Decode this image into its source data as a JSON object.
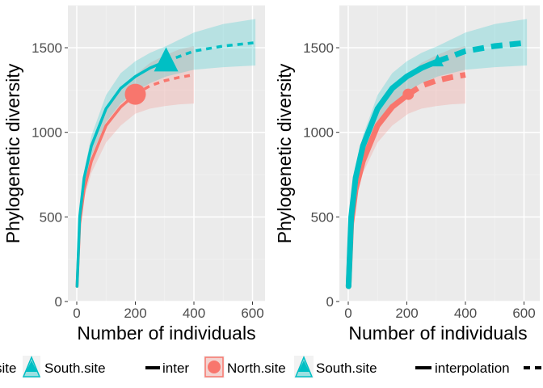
{
  "chart_data": [
    {
      "type": "line",
      "title": "",
      "xlabel": "Number of individuals",
      "ylabel": "Phylogenetic diversity",
      "xlim": [
        -25,
        630
      ],
      "ylim": [
        0,
        1750
      ],
      "x_ticks": [
        "0",
        "200",
        "400",
        "600"
      ],
      "y_ticks": [
        "0",
        "500",
        "1000",
        "1500"
      ],
      "grid": true,
      "legend_position": "bottom",
      "series": [
        {
          "name": "North.site",
          "color": "#F8766D",
          "observed": {
            "x": 200,
            "y": 1225
          },
          "interpolation": {
            "x": [
              1,
              10,
              25,
              50,
              100,
              150,
              200
            ],
            "y": [
              90,
              460,
              660,
              830,
              1040,
              1150,
              1225
            ],
            "lower": [
              85,
              440,
              610,
              760,
              940,
              1040,
              1110
            ],
            "upper": [
              95,
              480,
              710,
              900,
              1140,
              1260,
              1340
            ]
          },
          "extrapolation": {
            "x": [
              200,
              250,
              300,
              350,
              400
            ],
            "y": [
              1225,
              1275,
              1305,
              1325,
              1340
            ],
            "lower": [
              1110,
              1140,
              1155,
              1165,
              1170
            ],
            "upper": [
              1340,
              1410,
              1455,
              1490,
              1510
            ]
          }
        },
        {
          "name": "South.site",
          "color": "#00BFC4",
          "observed": {
            "x": 305,
            "y": 1420
          },
          "interpolation": {
            "x": [
              1,
              10,
              25,
              50,
              100,
              150,
              200,
              250,
              305
            ],
            "y": [
              90,
              500,
              730,
              920,
              1140,
              1260,
              1330,
              1380,
              1420
            ],
            "lower": [
              85,
              480,
              690,
              860,
              1060,
              1170,
              1240,
              1290,
              1330
            ],
            "upper": [
              95,
              520,
              770,
              980,
              1220,
              1350,
              1420,
              1470,
              1510
            ]
          },
          "extrapolation": {
            "x": [
              305,
              400,
              500,
              610
            ],
            "y": [
              1420,
              1480,
              1510,
              1530
            ],
            "lower": [
              1330,
              1370,
              1385,
              1395
            ],
            "upper": [
              1510,
              1590,
              1640,
              1670
            ]
          }
        }
      ]
    },
    {
      "type": "line",
      "title": "",
      "xlabel": "Number of individuals",
      "ylabel": "Phylogenetic diversity",
      "xlim": [
        -25,
        630
      ],
      "ylim": [
        0,
        1750
      ],
      "x_ticks": [
        "0",
        "200",
        "400",
        "600"
      ],
      "y_ticks": [
        "0",
        "500",
        "1000",
        "1500"
      ],
      "grid": true,
      "legend_position": "bottom",
      "series": [
        {
          "name": "North.site",
          "color": "#F8766D",
          "observed": {
            "x": 205,
            "y": 1225
          },
          "interpolation": {
            "x": [
              1,
              10,
              25,
              50,
              100,
              150,
              205
            ],
            "y": [
              90,
              460,
              660,
              830,
              1040,
              1150,
              1225
            ],
            "lower": [
              85,
              440,
              610,
              760,
              940,
              1040,
              1110
            ],
            "upper": [
              95,
              480,
              710,
              900,
              1140,
              1260,
              1340
            ]
          },
          "extrapolation": {
            "x": [
              205,
              250,
              300,
              350,
              400
            ],
            "y": [
              1225,
              1275,
              1305,
              1325,
              1340
            ],
            "lower": [
              1110,
              1140,
              1155,
              1165,
              1170
            ],
            "upper": [
              1340,
              1410,
              1455,
              1490,
              1510
            ]
          }
        },
        {
          "name": "South.site",
          "color": "#00BFC4",
          "observed": {
            "x": 305,
            "y": 1420
          },
          "interpolation": {
            "x": [
              1,
              10,
              25,
              50,
              100,
              150,
              200,
              250,
              305
            ],
            "y": [
              90,
              500,
              730,
              920,
              1140,
              1260,
              1330,
              1380,
              1420
            ],
            "lower": [
              85,
              480,
              690,
              860,
              1060,
              1170,
              1240,
              1290,
              1330
            ],
            "upper": [
              95,
              520,
              770,
              980,
              1220,
              1350,
              1420,
              1470,
              1510
            ]
          },
          "extrapolation": {
            "x": [
              305,
              400,
              500,
              610
            ],
            "y": [
              1420,
              1480,
              1510,
              1530
            ],
            "lower": [
              1330,
              1370,
              1385,
              1395
            ],
            "upper": [
              1510,
              1590,
              1640,
              1670
            ]
          }
        }
      ]
    }
  ],
  "legend": {
    "items": [
      {
        "label": "site",
        "type": "text-fragment"
      },
      {
        "label": "South.site",
        "type": "triangle",
        "color": "#00BFC4"
      },
      {
        "label": "inter",
        "type": "solid-line"
      },
      {
        "label": "North.site",
        "type": "circle",
        "color": "#F8766D"
      },
      {
        "label": "South.site",
        "type": "triangle",
        "color": "#00BFC4"
      },
      {
        "label": "interpolation",
        "type": "solid-line"
      },
      {
        "label": "-",
        "type": "dashed-line"
      }
    ]
  },
  "colors": {
    "panel_bg": "#EBEBEB",
    "grid_major": "#FFFFFF",
    "grid_minor": "#F2F2F2"
  }
}
